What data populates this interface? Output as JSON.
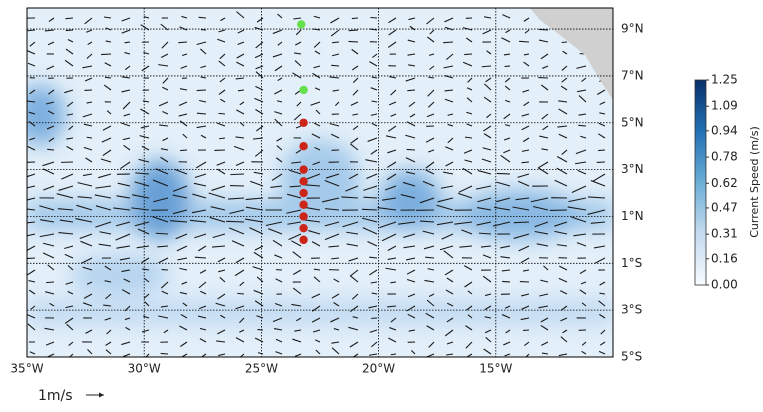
{
  "map": {
    "xlim": [
      -35,
      -10
    ],
    "ylim": [
      -5,
      9.9
    ],
    "xticks": [
      {
        "value": -35,
        "label": "35°W"
      },
      {
        "value": -30,
        "label": "30°W"
      },
      {
        "value": -25,
        "label": "25°W"
      },
      {
        "value": -20,
        "label": "20°W"
      },
      {
        "value": -15,
        "label": "15°W"
      }
    ],
    "yticks": [
      {
        "value": 9,
        "label": "9°N"
      },
      {
        "value": 7,
        "label": "7°N"
      },
      {
        "value": 5,
        "label": "5°N"
      },
      {
        "value": 3,
        "label": "3°N"
      },
      {
        "value": 1,
        "label": "1°N"
      },
      {
        "value": -1,
        "label": "1°S"
      },
      {
        "value": -3,
        "label": "3°S"
      },
      {
        "value": -5,
        "label": "5°S"
      }
    ],
    "markers": [
      {
        "lon": -23.3,
        "lat": 9.2,
        "color": "#66e04a"
      },
      {
        "lon": -23.2,
        "lat": 6.4,
        "color": "#66e04a"
      },
      {
        "lon": -23.2,
        "lat": 5,
        "color": "#cc2418"
      },
      {
        "lon": -23.2,
        "lat": 4,
        "color": "#cc2418"
      },
      {
        "lon": -23.2,
        "lat": 3,
        "color": "#cc2418"
      },
      {
        "lon": -23.2,
        "lat": 2.5,
        "color": "#cc2418"
      },
      {
        "lon": -23.2,
        "lat": 2,
        "color": "#cc2418"
      },
      {
        "lon": -23.2,
        "lat": 1.5,
        "color": "#cc2418"
      },
      {
        "lon": -23.2,
        "lat": 1,
        "color": "#cc2418"
      },
      {
        "lon": -23.2,
        "lat": 0.5,
        "color": "#cc2418"
      },
      {
        "lon": -23.2,
        "lat": 0,
        "color": "#cc2418"
      }
    ],
    "reference_label": "1m/s"
  },
  "colorbar": {
    "label": "Current Speed (m/s)",
    "lim": [
      0,
      1.25
    ],
    "ticks": [
      {
        "value": 0,
        "label": "0.00"
      },
      0.16,
      0.31,
      0.47,
      0.62,
      0.78,
      0.94,
      1.09,
      1.25
    ]
  }
}
